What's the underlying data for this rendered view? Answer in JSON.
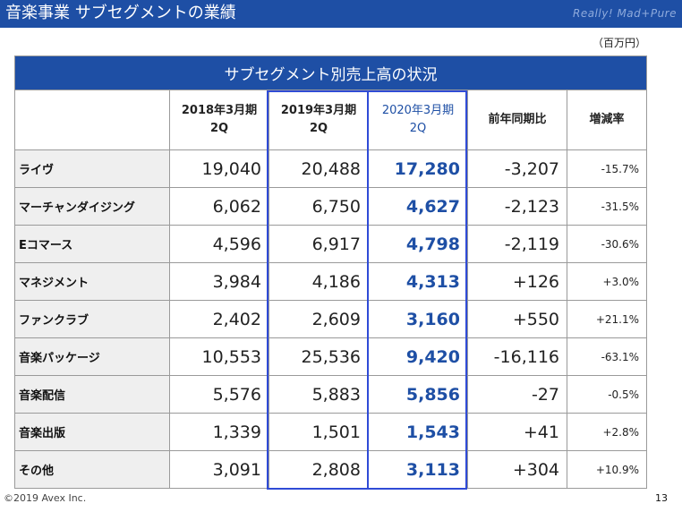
{
  "header": {
    "title": "音楽事業 サブセグメントの業績",
    "logo": "Really! Mad+Pure"
  },
  "unit_label": "（百万円）",
  "table": {
    "title": "サブセグメント別売上高の状況",
    "columns": [
      {
        "line1": "2018年3月期",
        "line2": "2Q"
      },
      {
        "line1": "2019年3月期",
        "line2": "2Q"
      },
      {
        "line1": "2020年3月期",
        "line2": "2Q"
      },
      {
        "line1": "前年同期比",
        "line2": ""
      },
      {
        "line1": "増減率",
        "line2": ""
      }
    ],
    "rows": [
      {
        "name": "ライヴ",
        "fy2018": "19,040",
        "fy2019": "20,488",
        "fy2020": "17,280",
        "yoy": "-3,207",
        "rate": "-15.7%"
      },
      {
        "name": "マーチャンダイジング",
        "fy2018": "6,062",
        "fy2019": "6,750",
        "fy2020": "4,627",
        "yoy": "-2,123",
        "rate": "-31.5%"
      },
      {
        "name": "Eコマース",
        "fy2018": "4,596",
        "fy2019": "6,917",
        "fy2020": "4,798",
        "yoy": "-2,119",
        "rate": "-30.6%"
      },
      {
        "name": "マネジメント",
        "fy2018": "3,984",
        "fy2019": "4,186",
        "fy2020": "4,313",
        "yoy": "+126",
        "rate": "+3.0%"
      },
      {
        "name": "ファンクラブ",
        "fy2018": "2,402",
        "fy2019": "2,609",
        "fy2020": "3,160",
        "yoy": "+550",
        "rate": "+21.1%"
      },
      {
        "name": "音楽パッケージ",
        "fy2018": "10,553",
        "fy2019": "25,536",
        "fy2020": "9,420",
        "yoy": "-16,116",
        "rate": "-63.1%"
      },
      {
        "name": "音楽配信",
        "fy2018": "5,576",
        "fy2019": "5,883",
        "fy2020": "5,856",
        "yoy": "-27",
        "rate": "-0.5%"
      },
      {
        "name": "音楽出版",
        "fy2018": "1,339",
        "fy2019": "1,501",
        "fy2020": "1,543",
        "yoy": "+41",
        "rate": "+2.8%"
      },
      {
        "name": "その他",
        "fy2018": "3,091",
        "fy2019": "2,808",
        "fy2020": "3,113",
        "yoy": "+304",
        "rate": "+10.9%"
      }
    ]
  },
  "footer": {
    "copyright": "©2019 Avex Inc.",
    "page_number": "13"
  },
  "colors": {
    "brand_blue": "#1e4fa5",
    "highlight_border": "#2f4bd6"
  }
}
